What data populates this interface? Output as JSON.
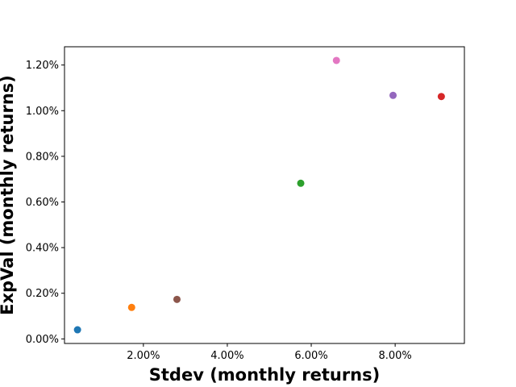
{
  "chart_data": {
    "type": "scatter",
    "title": "",
    "xlabel": "Stdev (monthly returns)",
    "ylabel": "ExpVal (monthly returns)",
    "xlim": [
      0.0012,
      0.0965
    ],
    "ylim": [
      -0.0002,
      0.0128
    ],
    "x_ticks": [
      0.02,
      0.04,
      0.06,
      0.08
    ],
    "x_tick_labels": [
      "2.00%",
      "4.00%",
      "6.00%",
      "8.00%"
    ],
    "y_ticks": [
      0.0,
      0.002,
      0.004,
      0.006,
      0.008,
      0.01,
      0.012
    ],
    "y_tick_labels": [
      "0.00%",
      "0.20%",
      "0.40%",
      "0.60%",
      "0.80%",
      "1.00%",
      "1.20%"
    ],
    "grid": false,
    "points": [
      {
        "x": 0.0043,
        "y": 0.0004,
        "color": "#1f77b4"
      },
      {
        "x": 0.0172,
        "y": 0.00138,
        "color": "#ff7f0e"
      },
      {
        "x": 0.0575,
        "y": 0.00682,
        "color": "#2ca02c"
      },
      {
        "x": 0.091,
        "y": 0.01062,
        "color": "#d62728"
      },
      {
        "x": 0.0795,
        "y": 0.01067,
        "color": "#9467bd"
      },
      {
        "x": 0.028,
        "y": 0.00173,
        "color": "#8c564b"
      },
      {
        "x": 0.066,
        "y": 0.0122,
        "color": "#e377c2"
      }
    ]
  }
}
